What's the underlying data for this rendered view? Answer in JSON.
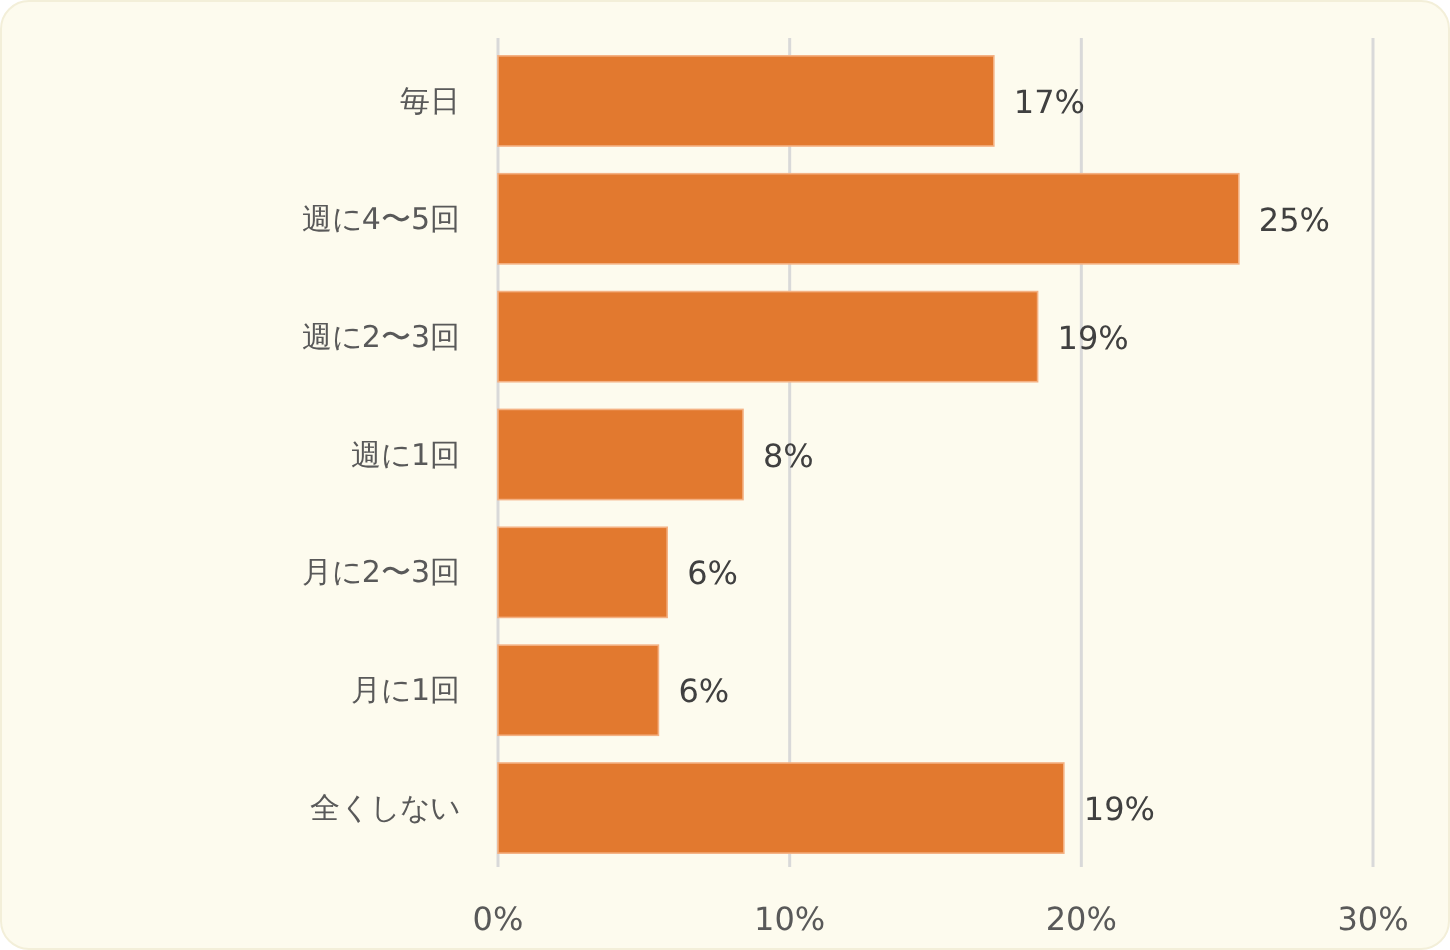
{
  "chart_data": {
    "type": "bar",
    "orientation": "horizontal",
    "categories": [
      "毎日",
      "週に4〜5回",
      "週に2〜3回",
      "週に1回",
      "月に2〜3回",
      "月に1回",
      "全くしない"
    ],
    "values": [
      17.0,
      25.4,
      18.5,
      8.4,
      5.8,
      5.5,
      19.4
    ],
    "value_labels": [
      "17%",
      "25%",
      "19%",
      "8%",
      "6%",
      "6%",
      "19%"
    ],
    "color": "#e2792f",
    "xlim": [
      0,
      30
    ],
    "xticks": [
      {
        "value": 0,
        "label": "0%"
      },
      {
        "value": 10,
        "label": "10%"
      },
      {
        "value": 20,
        "label": "20%"
      },
      {
        "value": 30,
        "label": "30%"
      }
    ],
    "grid": "x"
  }
}
